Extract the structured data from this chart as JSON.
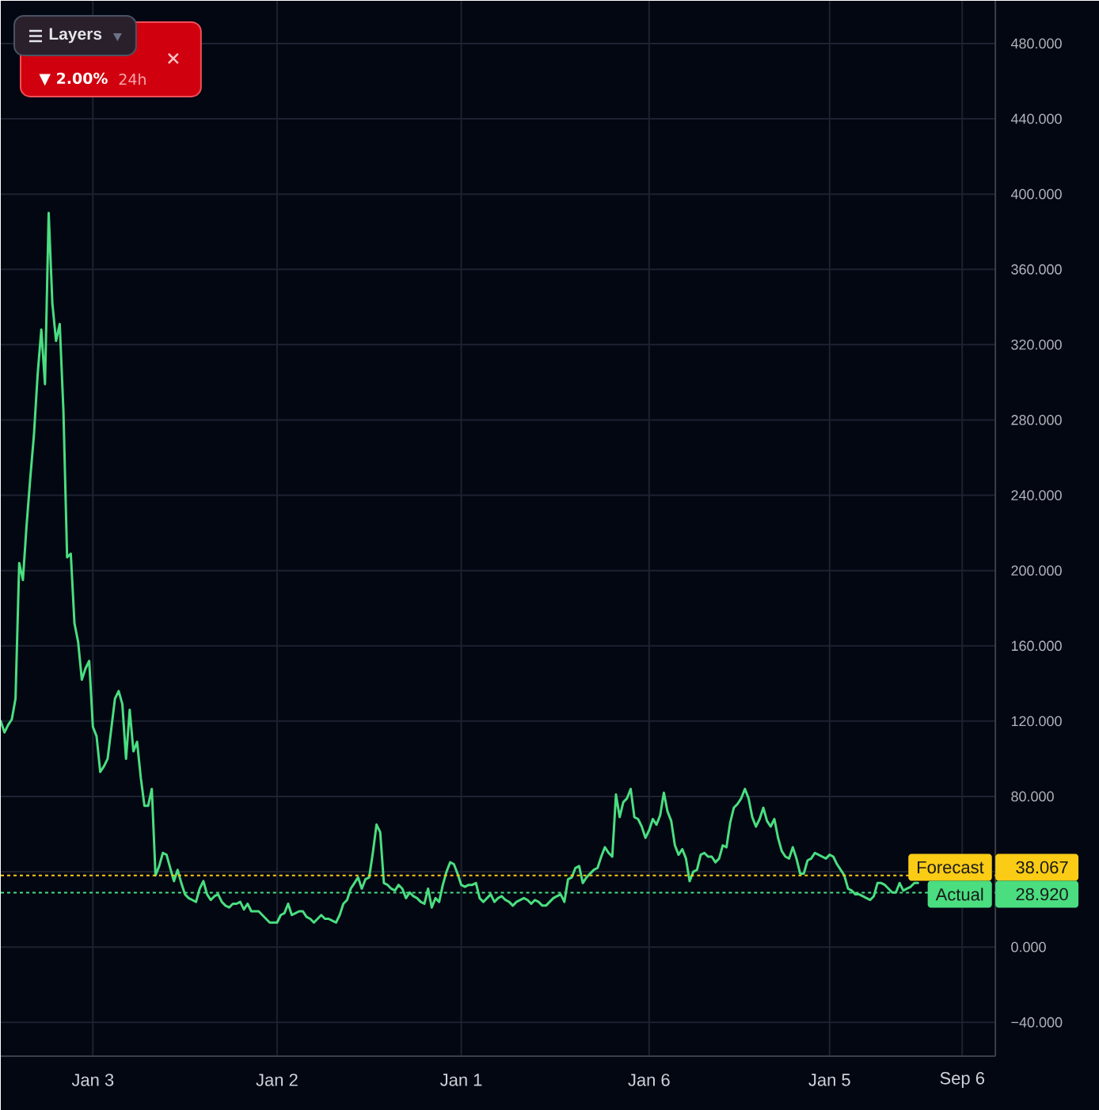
{
  "chart_data": {
    "type": "line",
    "categories": [
      null,
      null,
      null,
      null,
      null,
      null,
      null,
      null,
      null,
      null,
      null,
      null,
      null,
      null,
      null,
      null,
      null,
      null,
      null,
      null,
      null,
      null,
      null,
      null,
      null,
      "Jan 3",
      null,
      null,
      null,
      null,
      null,
      null,
      null,
      null,
      null,
      null,
      null,
      null,
      null,
      null,
      null,
      null,
      null,
      null,
      null,
      null,
      null,
      null,
      null,
      null,
      null,
      null,
      null,
      null,
      null,
      null,
      null,
      null,
      null,
      null,
      null,
      null,
      null,
      null,
      null,
      null,
      null,
      null,
      null,
      null,
      null,
      null,
      null,
      null,
      null,
      "Jan 2",
      null,
      null,
      null,
      null,
      null,
      null,
      null,
      null,
      null,
      null,
      null,
      null,
      null,
      null,
      null,
      null,
      null,
      null,
      null,
      null,
      null,
      null,
      null,
      null,
      null,
      null,
      null,
      null,
      null,
      null,
      null,
      null,
      null,
      null,
      null,
      null,
      null,
      null,
      null,
      null,
      null,
      null,
      null,
      null,
      null,
      null,
      null,
      null,
      null,
      "Jan 1",
      null,
      null,
      null,
      null,
      null,
      null,
      null,
      null,
      null,
      null,
      null,
      null,
      null,
      null,
      null,
      null,
      null,
      null,
      null,
      null,
      null,
      null,
      null,
      null,
      null,
      null,
      null,
      null,
      null,
      null,
      null,
      null,
      null,
      null,
      null,
      null,
      null,
      null,
      null,
      null,
      null,
      null,
      null,
      null,
      null,
      null,
      null,
      null,
      null,
      null,
      "Jan 6",
      null,
      null,
      null,
      null,
      null,
      null,
      null,
      null,
      null,
      null,
      null,
      null,
      null,
      null,
      null,
      null,
      null,
      null,
      null,
      null,
      null,
      null,
      null,
      null,
      null,
      null,
      null,
      null,
      null,
      null,
      null,
      null,
      null,
      null,
      null,
      null,
      null,
      null,
      null,
      null,
      null,
      null,
      null,
      null,
      null,
      null,
      null,
      null,
      "Jan 5",
      null,
      null,
      null,
      null,
      null,
      null,
      null,
      null,
      null,
      null,
      null,
      null,
      null,
      null,
      null,
      null,
      null,
      null,
      null,
      null,
      null,
      null,
      null,
      null,
      null,
      null,
      null,
      null,
      null,
      null,
      null,
      null,
      null,
      null,
      null,
      "Sep 6",
      null,
      null,
      null,
      null,
      null,
      null,
      null,
      null,
      null
    ],
    "values": [
      120,
      114,
      118,
      121,
      132,
      204,
      195,
      224,
      249,
      272,
      304,
      328,
      299,
      390,
      342,
      322,
      331,
      285,
      207,
      209,
      172,
      162,
      142,
      148,
      152,
      117,
      112,
      93,
      96,
      100,
      116,
      132,
      136,
      129,
      100,
      126,
      104,
      109,
      90,
      75,
      75,
      84,
      38,
      43,
      50,
      49,
      42,
      35,
      41,
      34,
      28,
      26,
      25,
      24,
      31,
      35,
      28,
      25,
      27,
      28,
      24,
      22,
      21,
      23,
      23,
      24,
      20,
      23,
      19,
      19,
      19,
      17,
      15,
      13,
      13,
      13,
      17,
      18,
      23,
      17,
      18,
      19,
      19,
      16,
      15,
      13,
      15,
      17,
      15,
      15,
      14,
      13,
      17,
      23,
      25,
      31,
      34,
      37,
      31,
      36,
      37,
      50,
      65,
      61,
      34,
      33,
      31,
      30,
      33,
      31,
      26,
      29,
      27,
      26,
      24,
      23,
      31,
      21,
      26,
      24,
      33,
      40,
      45,
      44,
      39,
      33,
      32,
      33,
      33,
      34,
      26,
      24,
      26,
      28,
      24,
      26,
      27,
      25,
      24,
      22,
      24,
      25,
      26,
      25,
      23,
      25,
      24,
      22,
      22,
      24,
      26,
      27,
      28,
      24,
      36,
      37,
      42,
      43,
      34,
      37,
      39,
      41,
      42,
      48,
      53,
      50,
      48,
      81,
      69,
      77,
      79,
      84,
      69,
      68,
      64,
      58,
      62,
      68,
      65,
      70,
      82,
      72,
      67,
      54,
      49,
      52,
      47,
      35,
      40,
      41,
      49,
      50,
      48,
      48,
      45,
      47,
      54,
      53,
      66,
      74,
      76,
      79,
      84,
      79,
      69,
      64,
      68,
      74,
      67,
      64,
      68,
      58,
      51,
      48,
      47,
      53,
      47,
      39,
      39,
      46,
      47,
      50,
      49,
      48,
      47,
      49,
      48,
      44,
      41,
      38,
      31,
      30,
      28,
      28,
      27,
      26,
      25,
      27,
      34,
      34,
      33,
      31,
      29,
      29,
      34,
      30,
      31,
      32,
      34,
      34,
      null,
      null,
      null,
      null,
      null,
      null,
      null,
      null,
      null,
      null,
      null,
      null,
      null,
      null,
      null,
      null,
      null,
      null,
      null,
      null,
      null
    ],
    "color": "#4ade80",
    "ylim": [
      -58,
      502.7
    ],
    "yticks": [
      {
        "value": -40,
        "label": "−40.000"
      },
      {
        "value": 0,
        "label": "0.000"
      },
      {
        "value": 40,
        "label": null
      },
      {
        "value": 80,
        "label": "80.000"
      },
      {
        "value": 120,
        "label": "120.000"
      },
      {
        "value": 160,
        "label": "160.000"
      },
      {
        "value": 200,
        "label": "200.000"
      },
      {
        "value": 240,
        "label": "240.000"
      },
      {
        "value": 280,
        "label": "280.000"
      },
      {
        "value": 320,
        "label": "320.000"
      },
      {
        "value": 360,
        "label": "360.000"
      },
      {
        "value": 400,
        "label": "400.000"
      },
      {
        "value": 440,
        "label": "440.000"
      },
      {
        "value": 480,
        "label": "480.000"
      }
    ],
    "grid": true,
    "ref_lines": [
      {
        "axis": "y",
        "value": 38.067,
        "label": "Forecast",
        "color": "#facc15",
        "line_style": "dotted"
      },
      {
        "axis": "y",
        "value": 28.92,
        "label": "Actual",
        "color": "#4ade80",
        "line_style": "dotted"
      }
    ],
    "annotations": [
      "Layers",
      "▼ 2.00%",
      "24h",
      "38.067",
      "28.920"
    ]
  }
}
